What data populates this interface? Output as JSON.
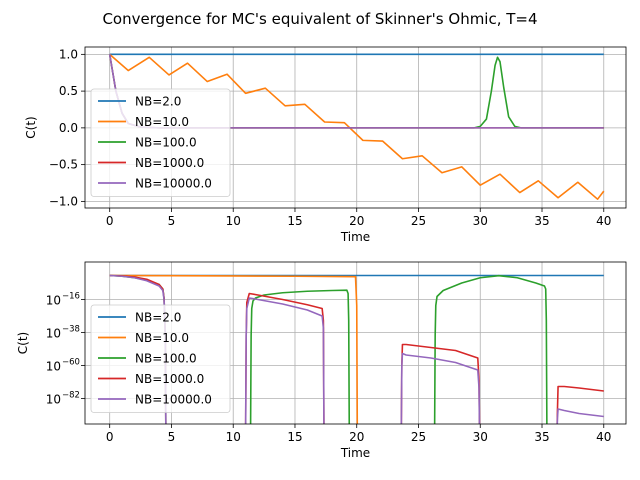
{
  "figure": {
    "title": "Convergence for MC's equivalent of Skinner's Ohmic, T=4"
  },
  "chart_data": [
    {
      "type": "line",
      "title": "",
      "xlabel": "Time",
      "ylabel": "C(t)",
      "xlim": [
        -2,
        41.8
      ],
      "ylim": [
        -1.09,
        1.1
      ],
      "xticks": [
        0,
        5,
        10,
        15,
        20,
        25,
        30,
        35,
        40
      ],
      "yticks": [
        -1.0,
        -0.5,
        0.0,
        0.5,
        1.0
      ],
      "ytick_labels": [
        "−1.0",
        "−0.5",
        "0.0",
        "0.5",
        "1.0"
      ],
      "grid": true,
      "legend_position": "center-left",
      "series": [
        {
          "name": "NB=2.0",
          "color": "#1f77b4",
          "x": [
            0,
            40
          ],
          "y": [
            1.0,
            1.0
          ]
        },
        {
          "name": "NB=10.0",
          "color": "#ff7f0e",
          "x": [
            0,
            1.5,
            3.2,
            4.8,
            6.3,
            7.9,
            9.5,
            11.0,
            12.6,
            14.2,
            15.8,
            17.4,
            19.0,
            20.5,
            22.1,
            23.7,
            25.3,
            26.9,
            28.5,
            30.0,
            31.6,
            33.2,
            34.7,
            36.3,
            37.9,
            39.5,
            40
          ],
          "y": [
            1.0,
            0.78,
            0.96,
            0.72,
            0.88,
            0.63,
            0.73,
            0.47,
            0.54,
            0.3,
            0.32,
            0.08,
            0.07,
            -0.17,
            -0.18,
            -0.42,
            -0.38,
            -0.61,
            -0.53,
            -0.78,
            -0.63,
            -0.88,
            -0.72,
            -0.95,
            -0.74,
            -0.97,
            -0.86
          ]
        },
        {
          "name": "NB=100.0",
          "color": "#2ca02c",
          "x": [
            0,
            0.5,
            1.0,
            1.5,
            2.5,
            4,
            10,
            29.5,
            30.0,
            30.5,
            30.9,
            31.2,
            31.4,
            31.6,
            31.9,
            32.3,
            32.8,
            33.3,
            40
          ],
          "y": [
            1.0,
            0.5,
            0.2,
            0.06,
            0.01,
            0,
            0,
            0.0,
            0.02,
            0.12,
            0.5,
            0.85,
            0.96,
            0.9,
            0.55,
            0.15,
            0.02,
            0.0,
            0.0
          ]
        },
        {
          "name": "NB=1000.0",
          "color": "#d62728",
          "x": [
            0,
            0.5,
            1.0,
            1.5,
            2.5,
            4,
            10,
            40
          ],
          "y": [
            1.0,
            0.5,
            0.2,
            0.06,
            0.01,
            0,
            0,
            0
          ]
        },
        {
          "name": "NB=10000.0",
          "color": "#9467bd",
          "x": [
            0,
            0.5,
            1.0,
            1.5,
            2.5,
            4,
            10,
            40
          ],
          "y": [
            1.0,
            0.5,
            0.2,
            0.06,
            0.01,
            0,
            0,
            0
          ]
        }
      ]
    },
    {
      "type": "line",
      "title": "",
      "xlabel": "Time",
      "ylabel": "C(t)",
      "yscale": "log",
      "xlim": [
        -2,
        41.8
      ],
      "ylim_log10": [
        -99,
        9
      ],
      "xticks": [
        0,
        5,
        10,
        15,
        20,
        25,
        30,
        35,
        40
      ],
      "yticks_log10": [
        -16,
        -38,
        -60,
        -82
      ],
      "ytick_base": "10",
      "ytick_exponents": [
        "−16",
        "−38",
        "−60",
        "−82"
      ],
      "grid": true,
      "legend_position": "center-left",
      "series": [
        {
          "name": "NB=2.0",
          "color": "#1f77b4",
          "x": [
            0,
            40
          ],
          "log10y": [
            0,
            0
          ]
        },
        {
          "name": "NB=10.0",
          "color": "#ff7f0e",
          "x": [
            0,
            5,
            10,
            15,
            19.9,
            20.0,
            20.05
          ],
          "log10y": [
            0,
            -0.1,
            -0.3,
            -0.5,
            -0.8,
            -20,
            -110
          ]
        },
        {
          "name": "NB=100.0",
          "color": "#2ca02c",
          "x": [
            0,
            1,
            2,
            3,
            4,
            4.3,
            4.4,
            4.5,
            4.55,
            null,
            11.4,
            11.45,
            11.5,
            11.6,
            11.8,
            12.5,
            14,
            16,
            18,
            19.2,
            19.3,
            19.35,
            19.4,
            null,
            26.3,
            26.35,
            26.4,
            26.5,
            27,
            28.5,
            30,
            31.5,
            33,
            34.5,
            35.2,
            35.3,
            35.35,
            35.4
          ],
          "log10y": [
            0,
            -0.5,
            -1.5,
            -3,
            -6,
            -9,
            -15,
            -40,
            -110,
            null,
            -110,
            -40,
            -22,
            -17,
            -15,
            -13,
            -11.5,
            -10.5,
            -10,
            -9.8,
            -12,
            -30,
            -110,
            null,
            -110,
            -40,
            -20,
            -14,
            -10,
            -5,
            -1.5,
            -0.1,
            -1.5,
            -5,
            -7,
            -9,
            -30,
            -110
          ]
        },
        {
          "name": "NB=1000.0",
          "color": "#d62728",
          "x": [
            0,
            1,
            2,
            3,
            4,
            4.3,
            4.4,
            4.5,
            4.55,
            null,
            11.0,
            11.05,
            11.1,
            11.3,
            12,
            14,
            16,
            17.2,
            17.3,
            17.35,
            null,
            23.6,
            23.65,
            23.7,
            24,
            26,
            28,
            29.8,
            29.9,
            29.95,
            null,
            36.2,
            36.25,
            36.3,
            36.8,
            38,
            40
          ],
          "log10y": [
            0,
            -0.3,
            -1,
            -2.5,
            -6,
            -9,
            -15,
            -40,
            -110,
            null,
            -110,
            -40,
            -18,
            -12,
            -13,
            -16,
            -19.5,
            -22,
            -30,
            -110,
            null,
            -110,
            -60,
            -46,
            -46,
            -48,
            -50,
            -55,
            -70,
            -110,
            null,
            -110,
            -90,
            -74,
            -74,
            -75,
            -77
          ]
        },
        {
          "name": "NB=10000.0",
          "color": "#9467bd",
          "x": [
            0,
            1,
            2,
            3,
            4,
            4.3,
            4.4,
            4.5,
            4.55,
            null,
            11.0,
            11.05,
            11.1,
            11.3,
            12,
            14,
            16,
            17.2,
            17.3,
            17.35,
            null,
            23.6,
            23.65,
            23.7,
            24,
            26,
            28,
            29.8,
            29.9,
            29.95,
            null,
            36.2,
            36.25,
            36.3,
            36.8,
            38,
            40
          ],
          "log10y": [
            0,
            -0.5,
            -1.5,
            -3.5,
            -7,
            -10,
            -16,
            -40,
            -110,
            null,
            -110,
            -40,
            -22,
            -15,
            -16,
            -19,
            -23,
            -27,
            -35,
            -110,
            null,
            -110,
            -60,
            -52,
            -53,
            -55,
            -58,
            -63,
            -75,
            -110,
            null,
            -110,
            -95,
            -89,
            -90,
            -92,
            -94
          ]
        }
      ]
    }
  ]
}
